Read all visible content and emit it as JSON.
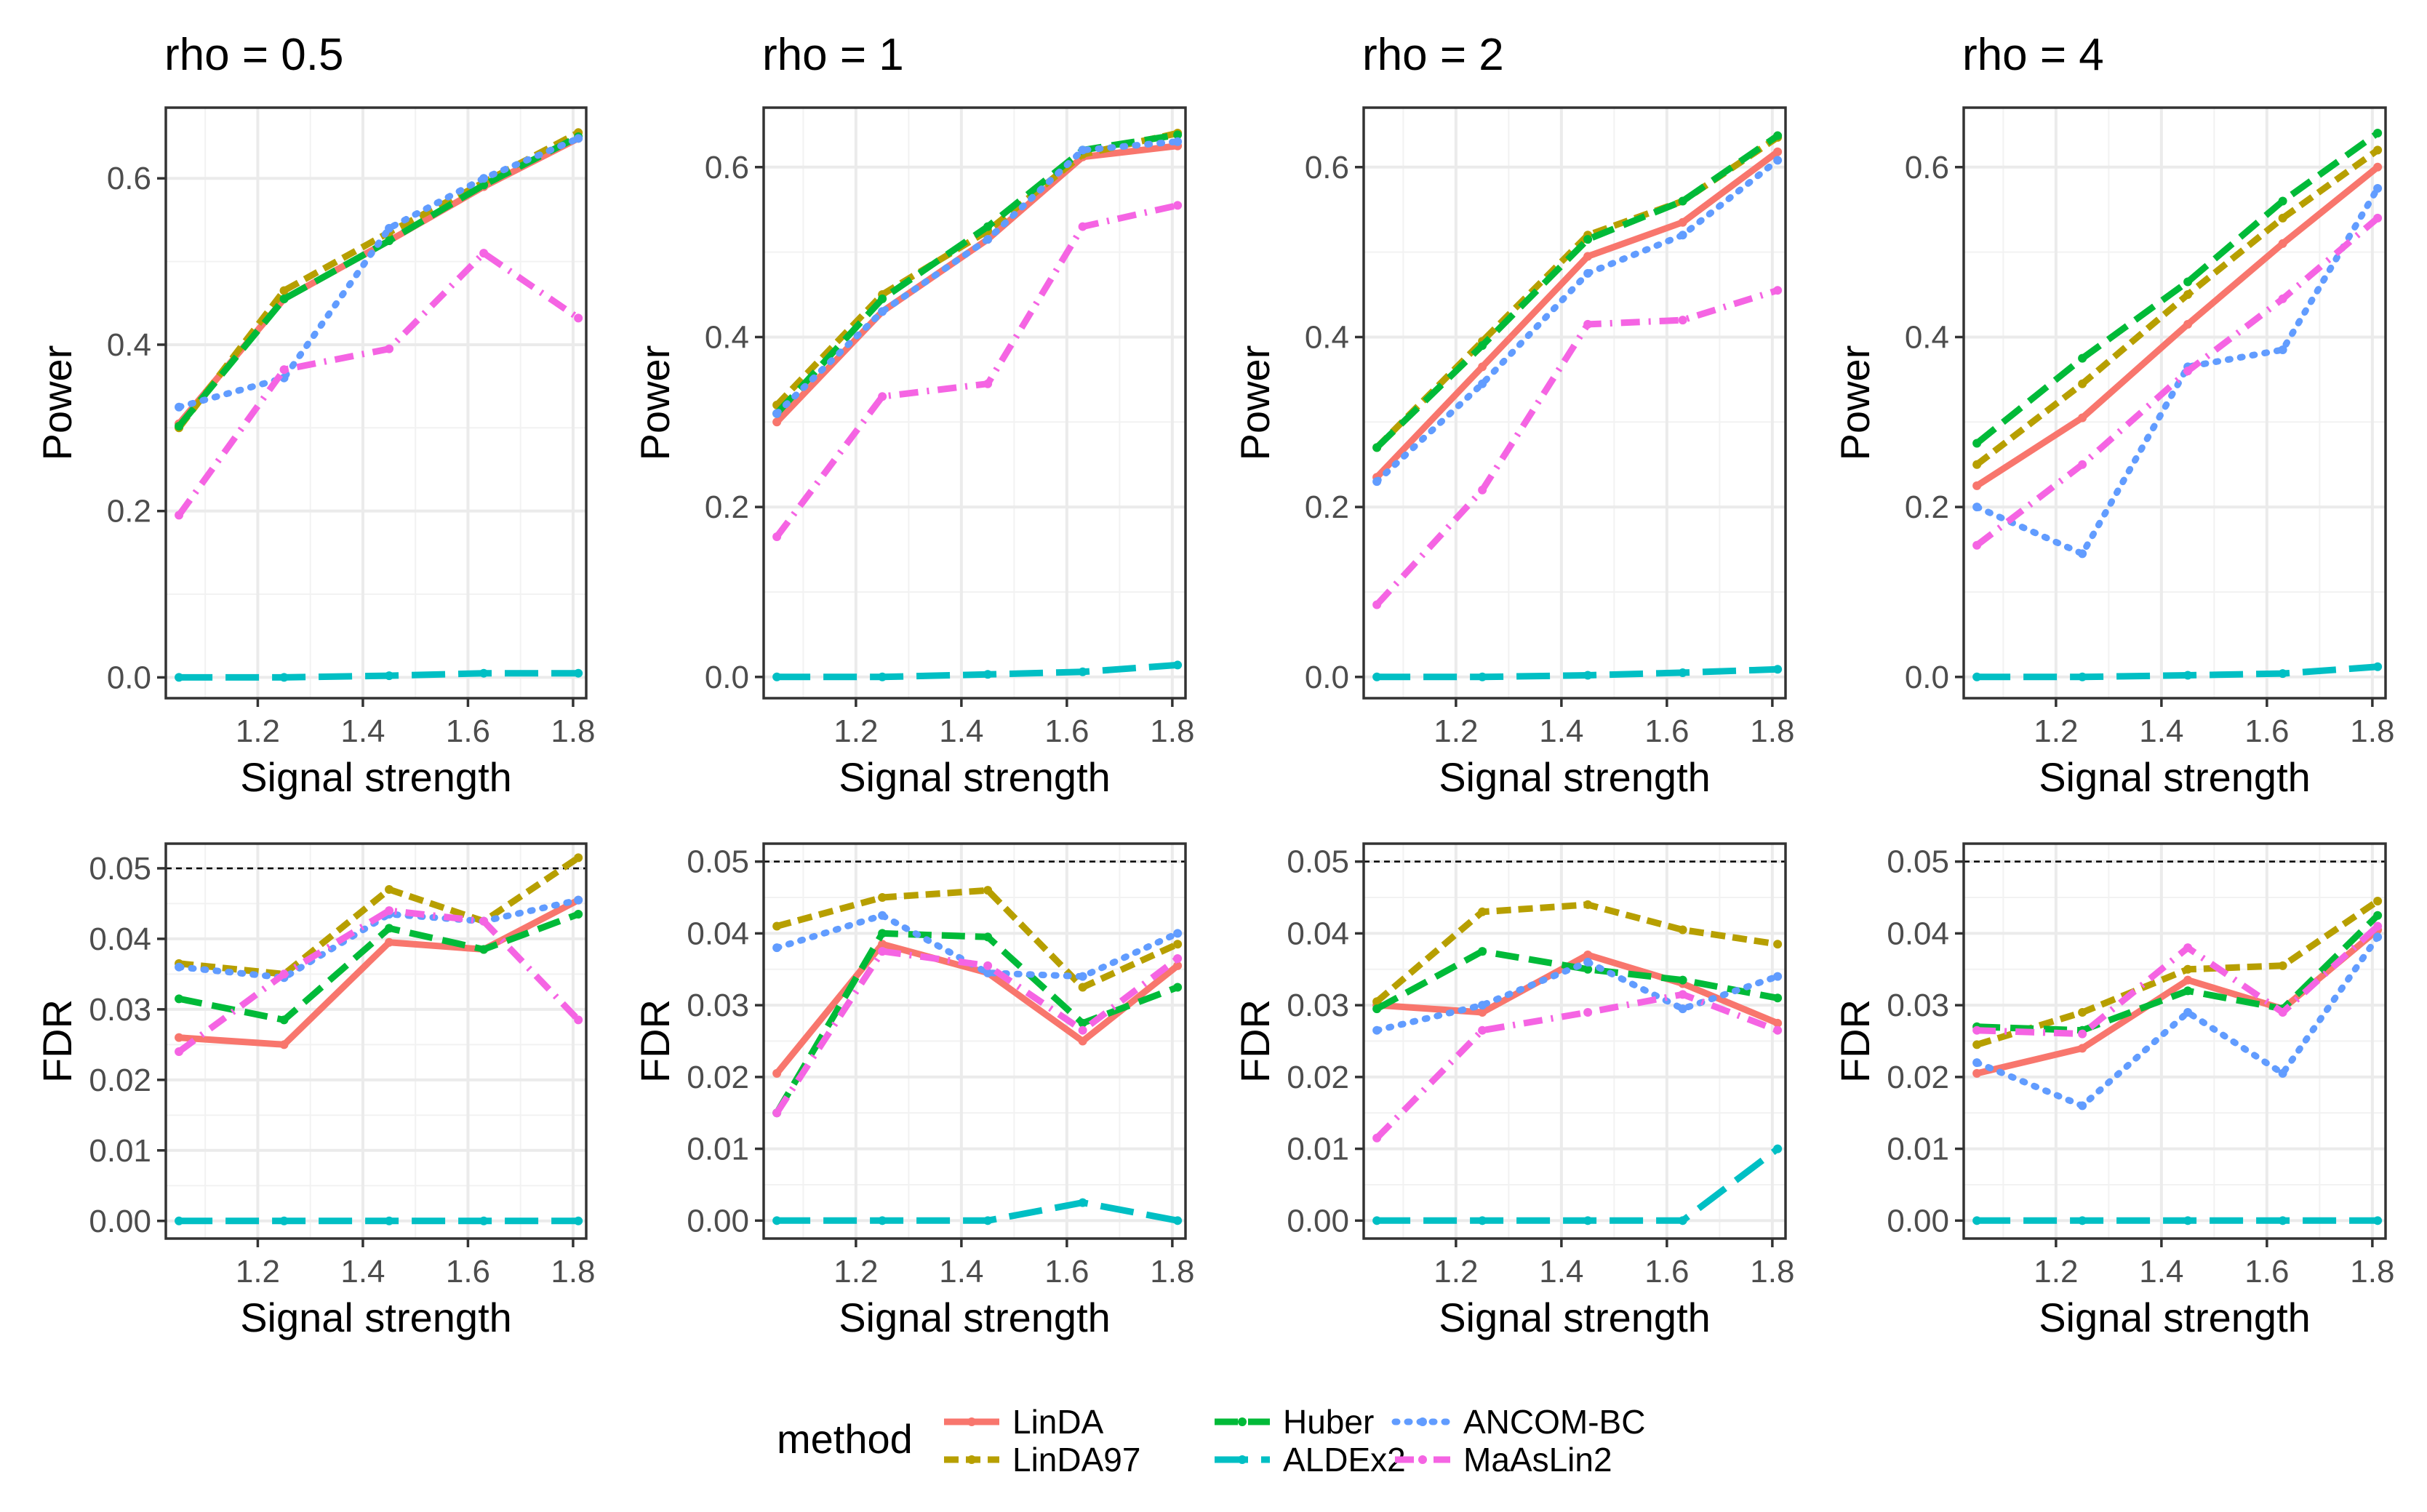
{
  "chart_data": {
    "type": "line",
    "x_label": "Signal strength",
    "x_ticks": [
      1.2,
      1.4,
      1.6,
      1.8
    ],
    "x_tick_labels": [
      "1.2",
      "1.4",
      "1.6",
      "1.8"
    ],
    "xlim": [
      1.025,
      1.825
    ],
    "x": [
      1.05,
      1.25,
      1.45,
      1.63,
      1.81
    ],
    "fdr_threshold": 0.05,
    "rows": [
      {
        "metric": "Power",
        "ylabel": "Power",
        "ticks": [
          0.0,
          0.2,
          0.4,
          0.6
        ],
        "tick_labels": [
          "0.0",
          "0.2",
          "0.4",
          "0.6"
        ]
      },
      {
        "metric": "FDR",
        "ylabel": "FDR",
        "ticks": [
          0.0,
          0.01,
          0.02,
          0.03,
          0.04,
          0.05
        ],
        "tick_labels": [
          "0.00",
          "0.01",
          "0.02",
          "0.03",
          "0.04",
          "0.05"
        ]
      }
    ],
    "legend": {
      "title": "method",
      "position": "bottom",
      "items": [
        "LinDA",
        "LinDA97",
        "Huber",
        "ALDEx2",
        "ANCOM-BC",
        "MaAsLin2"
      ]
    },
    "methods": [
      {
        "name": "LinDA",
        "color": "#F8766D",
        "dash": "solid"
      },
      {
        "name": "LinDA97",
        "color": "#B79F00",
        "dash": "dashed-short"
      },
      {
        "name": "Huber",
        "color": "#00BA38",
        "dash": "dashed"
      },
      {
        "name": "ALDEx2",
        "color": "#00BFC4",
        "dash": "longdash"
      },
      {
        "name": "ANCOM-BC",
        "color": "#619CFF",
        "dash": "dotted"
      },
      {
        "name": "MaAsLin2",
        "color": "#F564E3",
        "dash": "dotdash"
      }
    ],
    "panels": [
      {
        "title": "rho = 0.5",
        "power": {
          "ylim": [
            -0.025,
            0.685
          ],
          "series": [
            {
              "name": "LinDA",
              "values": [
                0.305,
                0.455,
                0.525,
                0.59,
                0.648
              ]
            },
            {
              "name": "LinDA97",
              "values": [
                0.3,
                0.465,
                0.535,
                0.595,
                0.655
              ]
            },
            {
              "name": "Huber",
              "values": [
                0.302,
                0.455,
                0.525,
                0.592,
                0.65
              ]
            },
            {
              "name": "ALDEx2",
              "values": [
                0.0,
                0.0,
                0.002,
                0.005,
                0.005
              ]
            },
            {
              "name": "ANCOM-BC",
              "values": [
                0.325,
                0.36,
                0.54,
                0.6,
                0.648
              ]
            },
            {
              "name": "MaAsLin2",
              "values": [
                0.195,
                0.37,
                0.395,
                0.51,
                0.432
              ]
            }
          ]
        },
        "fdr": {
          "ylim": [
            -0.0025,
            0.0535
          ],
          "series": [
            {
              "name": "LinDA",
              "values": [
                0.026,
                0.025,
                0.0395,
                0.0385,
                0.0455
              ]
            },
            {
              "name": "LinDA97",
              "values": [
                0.0365,
                0.035,
                0.047,
                0.0425,
                0.0515
              ]
            },
            {
              "name": "Huber",
              "values": [
                0.0315,
                0.0285,
                0.0415,
                0.0385,
                0.0435
              ]
            },
            {
              "name": "ALDEx2",
              "values": [
                0.0,
                0.0,
                0.0,
                0.0,
                0.0
              ]
            },
            {
              "name": "ANCOM-BC",
              "values": [
                0.036,
                0.0345,
                0.0435,
                0.0425,
                0.0455
              ]
            },
            {
              "name": "MaAsLin2",
              "values": [
                0.024,
                0.035,
                0.044,
                0.0425,
                0.0285
              ]
            }
          ]
        }
      },
      {
        "title": "rho = 1",
        "power": {
          "ylim": [
            -0.025,
            0.67
          ],
          "series": [
            {
              "name": "LinDA",
              "values": [
                0.3,
                0.43,
                0.515,
                0.612,
                0.625
              ]
            },
            {
              "name": "LinDA97",
              "values": [
                0.32,
                0.45,
                0.525,
                0.615,
                0.64
              ]
            },
            {
              "name": "Huber",
              "values": [
                0.31,
                0.445,
                0.53,
                0.62,
                0.638
              ]
            },
            {
              "name": "ALDEx2",
              "values": [
                0.0,
                0.0,
                0.003,
                0.006,
                0.014
              ]
            },
            {
              "name": "ANCOM-BC",
              "values": [
                0.31,
                0.43,
                0.515,
                0.62,
                0.63
              ]
            },
            {
              "name": "MaAsLin2",
              "values": [
                0.165,
                0.33,
                0.345,
                0.53,
                0.555
              ]
            }
          ]
        },
        "fdr": {
          "ylim": [
            -0.0025,
            0.0525
          ],
          "series": [
            {
              "name": "LinDA",
              "values": [
                0.0205,
                0.0385,
                0.0345,
                0.025,
                0.0355
              ]
            },
            {
              "name": "LinDA97",
              "values": [
                0.041,
                0.045,
                0.046,
                0.0325,
                0.0385
              ]
            },
            {
              "name": "Huber",
              "values": [
                0.015,
                0.04,
                0.0395,
                0.0275,
                0.0325
              ]
            },
            {
              "name": "ALDEx2",
              "values": [
                0.0,
                0.0,
                0.0,
                0.0025,
                0.0
              ]
            },
            {
              "name": "ANCOM-BC",
              "values": [
                0.038,
                0.0425,
                0.0345,
                0.034,
                0.04
              ]
            },
            {
              "name": "MaAsLin2",
              "values": [
                0.015,
                0.0375,
                0.0355,
                0.0265,
                0.0365
              ]
            }
          ]
        }
      },
      {
        "title": "rho = 2",
        "power": {
          "ylim": [
            -0.025,
            0.67
          ],
          "series": [
            {
              "name": "LinDA",
              "values": [
                0.235,
                0.365,
                0.495,
                0.535,
                0.618
              ]
            },
            {
              "name": "LinDA97",
              "values": [
                0.27,
                0.395,
                0.52,
                0.56,
                0.635
              ]
            },
            {
              "name": "Huber",
              "values": [
                0.27,
                0.39,
                0.515,
                0.56,
                0.637
              ]
            },
            {
              "name": "ALDEx2",
              "values": [
                0.0,
                0.0,
                0.002,
                0.005,
                0.009
              ]
            },
            {
              "name": "ANCOM-BC",
              "values": [
                0.23,
                0.345,
                0.475,
                0.52,
                0.608
              ]
            },
            {
              "name": "MaAsLin2",
              "values": [
                0.085,
                0.22,
                0.415,
                0.42,
                0.455
              ]
            }
          ]
        },
        "fdr": {
          "ylim": [
            -0.0025,
            0.0525
          ],
          "series": [
            {
              "name": "LinDA",
              "values": [
                0.03,
                0.029,
                0.037,
                0.033,
                0.0275
              ]
            },
            {
              "name": "LinDA97",
              "values": [
                0.0305,
                0.043,
                0.044,
                0.0405,
                0.0385
              ]
            },
            {
              "name": "Huber",
              "values": [
                0.0295,
                0.0375,
                0.035,
                0.0335,
                0.031
              ]
            },
            {
              "name": "ALDEx2",
              "values": [
                0.0,
                0.0,
                0.0,
                0.0,
                0.01
              ]
            },
            {
              "name": "ANCOM-BC",
              "values": [
                0.0265,
                0.03,
                0.036,
                0.0295,
                0.034
              ]
            },
            {
              "name": "MaAsLin2",
              "values": [
                0.0115,
                0.0265,
                0.029,
                0.0315,
                0.0265
              ]
            }
          ]
        }
      },
      {
        "title": "rho = 4",
        "power": {
          "ylim": [
            -0.025,
            0.67
          ],
          "series": [
            {
              "name": "LinDA",
              "values": [
                0.225,
                0.305,
                0.415,
                0.51,
                0.6
              ]
            },
            {
              "name": "LinDA97",
              "values": [
                0.25,
                0.345,
                0.45,
                0.54,
                0.62
              ]
            },
            {
              "name": "Huber",
              "values": [
                0.275,
                0.375,
                0.465,
                0.56,
                0.64
              ]
            },
            {
              "name": "ALDEx2",
              "values": [
                0.0,
                0.0,
                0.002,
                0.004,
                0.012
              ]
            },
            {
              "name": "ANCOM-BC",
              "values": [
                0.2,
                0.145,
                0.365,
                0.385,
                0.575
              ]
            },
            {
              "name": "MaAsLin2",
              "values": [
                0.155,
                0.25,
                0.36,
                0.445,
                0.54
              ]
            }
          ]
        },
        "fdr": {
          "ylim": [
            -0.0025,
            0.0525
          ],
          "series": [
            {
              "name": "LinDA",
              "values": [
                0.0205,
                0.024,
                0.0335,
                0.0295,
                0.0405
              ]
            },
            {
              "name": "LinDA97",
              "values": [
                0.0245,
                0.029,
                0.035,
                0.0355,
                0.0445
              ]
            },
            {
              "name": "Huber",
              "values": [
                0.027,
                0.0265,
                0.032,
                0.0295,
                0.0425
              ]
            },
            {
              "name": "ALDEx2",
              "values": [
                0.0,
                0.0,
                0.0,
                0.0,
                0.0
              ]
            },
            {
              "name": "ANCOM-BC",
              "values": [
                0.022,
                0.016,
                0.029,
                0.0205,
                0.0395
              ]
            },
            {
              "name": "MaAsLin2",
              "values": [
                0.0265,
                0.026,
                0.038,
                0.029,
                0.041
              ]
            }
          ]
        }
      }
    ]
  }
}
